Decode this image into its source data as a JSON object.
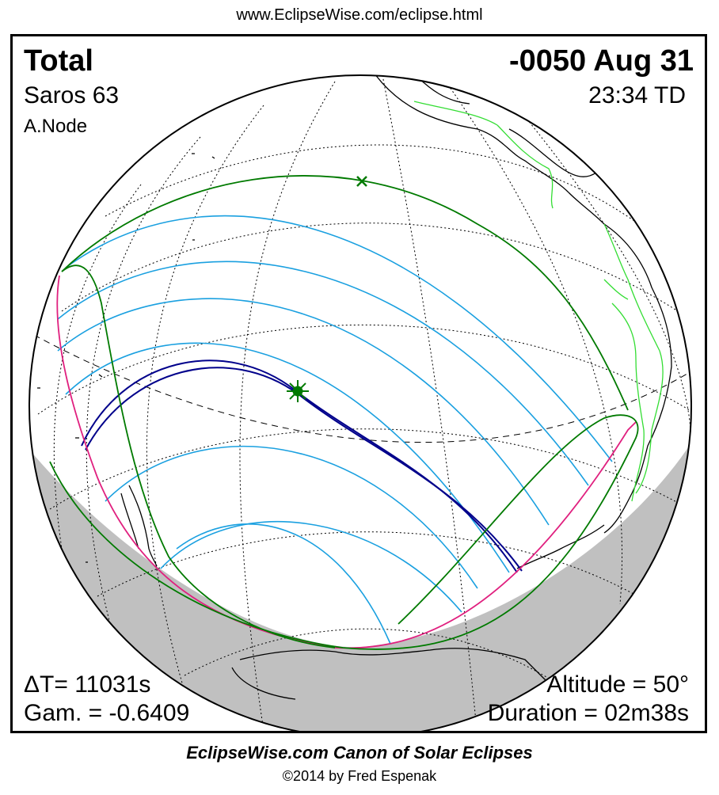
{
  "header": {
    "url": "www.EclipseWise.com/eclipse.html"
  },
  "eclipse": {
    "type": "Total",
    "date": "-0050 Aug 31",
    "saros": "Saros  63",
    "time": "23:34 TD",
    "node": "A.Node",
    "delta_t": "ΔT=  11031s",
    "gamma": "Gam. = -0.6409",
    "altitude": "Altitude = 50°",
    "duration": "Duration = 02m38s"
  },
  "footer": {
    "title": "EclipseWise.com Canon of Solar Eclipses",
    "copyright": "©2014 by Fred Espenak"
  },
  "colors": {
    "graticule": "#000000",
    "night_shade": "#c0c0c0",
    "penumbra_limits": "#007a00",
    "partial_lines": "#1aa0e0",
    "central_path": "#00008b",
    "rise_set": "#e0207f",
    "borders": "#33dd33",
    "coastline": "#000000"
  },
  "icons": {
    "greatest_eclipse_marker": "star-burst",
    "subsolar_marker": "x-mark"
  }
}
